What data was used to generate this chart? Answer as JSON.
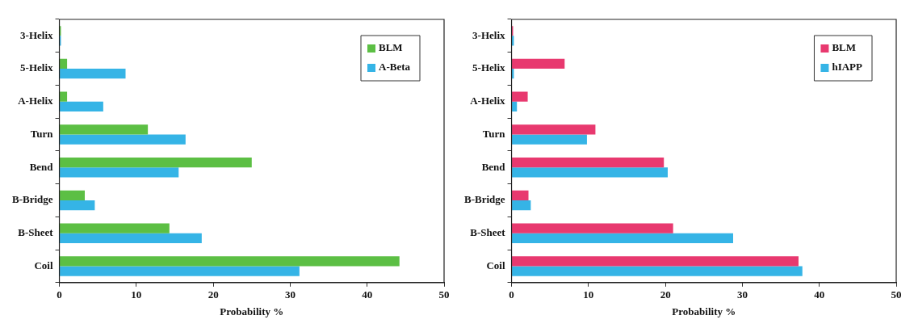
{
  "chart_data": [
    {
      "type": "bar",
      "orientation": "horizontal",
      "categories": [
        "3-Helix",
        "5-Helix",
        "A-Helix",
        "Turn",
        "Bend",
        "B-Bridge",
        "B-Sheet",
        "Coil"
      ],
      "xlabel": "Probability %",
      "xlim": [
        0,
        50
      ],
      "xticks": [
        0,
        10,
        20,
        30,
        40,
        50
      ],
      "grid": false,
      "legend": "top right",
      "series": [
        {
          "name": "BLM",
          "color": "#5cbf44",
          "values": [
            0.2,
            1.0,
            1.0,
            11.5,
            25.0,
            3.3,
            14.3,
            44.2
          ]
        },
        {
          "name": "A-Beta",
          "color": "#35b4e6",
          "values": [
            0.2,
            8.6,
            5.7,
            16.4,
            15.5,
            4.6,
            18.5,
            31.2
          ]
        }
      ]
    },
    {
      "type": "bar",
      "orientation": "horizontal",
      "categories": [
        "3-Helix",
        "5-Helix",
        "A-Helix",
        "Turn",
        "Bend",
        "B-Bridge",
        "B-Sheet",
        "Coil"
      ],
      "xlabel": "Probability %",
      "xlim": [
        0,
        50
      ],
      "xticks": [
        0,
        10,
        20,
        30,
        40,
        50
      ],
      "grid": false,
      "legend": "top right",
      "series": [
        {
          "name": "BLM",
          "color": "#e8396f",
          "values": [
            0.2,
            6.9,
            2.1,
            10.9,
            19.8,
            2.2,
            21.0,
            37.3
          ]
        },
        {
          "name": "hIAPP",
          "color": "#35b4e6",
          "values": [
            0.3,
            0.3,
            0.7,
            9.8,
            20.3,
            2.5,
            28.8,
            37.8
          ]
        }
      ]
    }
  ]
}
